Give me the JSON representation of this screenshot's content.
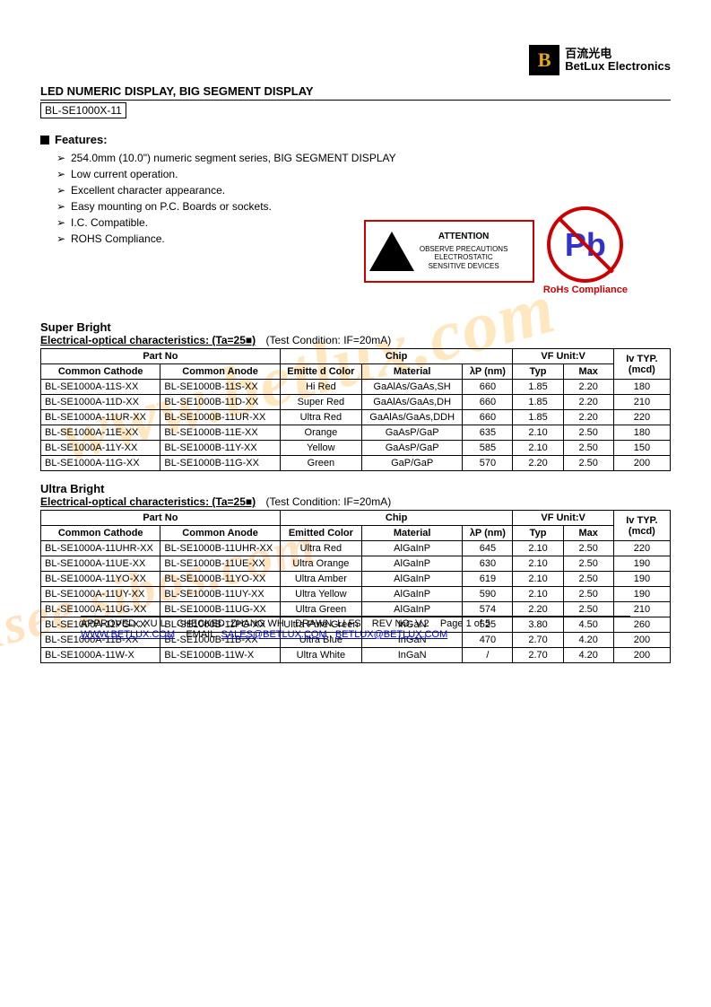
{
  "logo": {
    "cn": "百流光电",
    "en": "BetLux Electronics",
    "glyph": "B"
  },
  "title": "LED NUMERIC DISPLAY,   BIG SEGMENT DISPLAY",
  "subtitle": "BL-SE1000X-11",
  "features_label": "Features:",
  "features": [
    "254.0mm (10.0\") numeric segment series, BIG SEGMENT DISPLAY",
    "Low current operation.",
    "Excellent character appearance.",
    "Easy mounting on P.C. Boards or sockets.",
    "I.C. Compatible.",
    "ROHS Compliance."
  ],
  "esd": {
    "attention": "ATTENTION",
    "line1": "OBSERVE PRECAUTIONS",
    "line2": "ELECTROSTATIC",
    "line3": "SENSITIVE DEVICES"
  },
  "rohs": {
    "pb": "Pb",
    "label": "RoHs Compliance"
  },
  "sb_title": "Super Bright",
  "ub_title": "Ultra Bright",
  "char_label": "Electrical-optical characteristics: (Ta=25■)",
  "cond_label": "(Test Condition: IF=20mA)",
  "hdr": {
    "partno": "Part No",
    "chip": "Chip",
    "vf": "VF Unit:V",
    "iv": "Iv TYP.(mcd)",
    "cc": "Common Cathode",
    "ca": "Common Anode",
    "ecolor": "Emitted Color",
    "ecolor2": "Emitte d Color",
    "mat": "Material",
    "lp": "λP (nm)",
    "typ": "Typ",
    "max": "Max"
  },
  "sb_rows": [
    {
      "cc": "BL-SE1000A-11S-XX",
      "ca": "BL-SE1000B-11S-XX",
      "col": "Hi Red",
      "mat": "GaAlAs/GaAs,SH",
      "lp": "660",
      "typ": "1.85",
      "max": "2.20",
      "iv": "180"
    },
    {
      "cc": "BL-SE1000A-11D-XX",
      "ca": "BL-SE1000B-11D-XX",
      "col": "Super Red",
      "mat": "GaAlAs/GaAs,DH",
      "lp": "660",
      "typ": "1.85",
      "max": "2.20",
      "iv": "210"
    },
    {
      "cc": "BL-SE1000A-11UR-XX",
      "ca": "BL-SE1000B-11UR-XX",
      "col": "Ultra Red",
      "mat": "GaAlAs/GaAs,DDH",
      "lp": "660",
      "typ": "1.85",
      "max": "2.20",
      "iv": "220"
    },
    {
      "cc": "BL-SE1000A-11E-XX",
      "ca": "BL-SE1000B-11E-XX",
      "col": "Orange",
      "mat": "GaAsP/GaP",
      "lp": "635",
      "typ": "2.10",
      "max": "2.50",
      "iv": "180"
    },
    {
      "cc": "BL-SE1000A-11Y-XX",
      "ca": "BL-SE1000B-11Y-XX",
      "col": "Yellow",
      "mat": "GaAsP/GaP",
      "lp": "585",
      "typ": "2.10",
      "max": "2.50",
      "iv": "150"
    },
    {
      "cc": "BL-SE1000A-11G-XX",
      "ca": "BL-SE1000B-11G-XX",
      "col": "Green",
      "mat": "GaP/GaP",
      "lp": "570",
      "typ": "2.20",
      "max": "2.50",
      "iv": "200"
    }
  ],
  "ub_rows": [
    {
      "cc": "BL-SE1000A-11UHR-XX",
      "ca": "BL-SE1000B-11UHR-XX",
      "col": "Ultra Red",
      "mat": "AlGaInP",
      "lp": "645",
      "typ": "2.10",
      "max": "2.50",
      "iv": "220"
    },
    {
      "cc": "BL-SE1000A-11UE-XX",
      "ca": "BL-SE1000B-11UE-XX",
      "col": "Ultra Orange",
      "mat": "AlGaInP",
      "lp": "630",
      "typ": "2.10",
      "max": "2.50",
      "iv": "190"
    },
    {
      "cc": "BL-SE1000A-11YO-XX",
      "ca": "BL-SE1000B-11YO-XX",
      "col": "Ultra Amber",
      "mat": "AlGaInP",
      "lp": "619",
      "typ": "2.10",
      "max": "2.50",
      "iv": "190"
    },
    {
      "cc": "BL-SE1000A-11UY-XX",
      "ca": "BL-SE1000B-11UY-XX",
      "col": "Ultra Yellow",
      "mat": "AlGaInP",
      "lp": "590",
      "typ": "2.10",
      "max": "2.50",
      "iv": "190"
    },
    {
      "cc": "BL-SE1000A-11UG-XX",
      "ca": "BL-SE1000B-11UG-XX",
      "col": "Ultra Green",
      "mat": "AlGaInP",
      "lp": "574",
      "typ": "2.20",
      "max": "2.50",
      "iv": "210"
    },
    {
      "cc": "BL-SE1000A-11PG-XX",
      "ca": "BL-SE1000B-11PG-XX",
      "col": "Ultra Pure Green",
      "mat": "InGaN",
      "lp": "525",
      "typ": "3.80",
      "max": "4.50",
      "iv": "260"
    },
    {
      "cc": "BL-SE1000A-11B-XX",
      "ca": "BL-SE1000B-11B-XX",
      "col": "Ultra Blue",
      "mat": "InGaN",
      "lp": "470",
      "typ": "2.70",
      "max": "4.20",
      "iv": "200"
    },
    {
      "cc": "BL-SE1000A-11W-X",
      "ca": "BL-SE1000B-11W-X",
      "col": "Ultra White",
      "mat": "InGaN",
      "lp": "/",
      "typ": "2.70",
      "max": "4.20",
      "iv": "200"
    }
  ],
  "footer": {
    "approved": "APPROVED : XU L",
    "checked": "CHECKED :ZHANG WH",
    "drawn": "DRAWN: LI FS",
    "rev": "REV NO: V.2",
    "page": "Page 1 of 5",
    "web": "WWW.BETLUX.COM",
    "email_label": "EMAIL:",
    "email1": "SALES@BETLUX.COM",
    "email2": "BETLUX@BETLUX.COM"
  },
  "watermarks": {
    "wm1": "www.betlux.com",
    "wm2": "isee.sibos.com"
  },
  "colwidths": {
    "cc": "19%",
    "ca": "19%",
    "col": "13%",
    "mat": "16%",
    "lp": "8%",
    "typ": "8%",
    "max": "8%",
    "iv": "9%"
  }
}
